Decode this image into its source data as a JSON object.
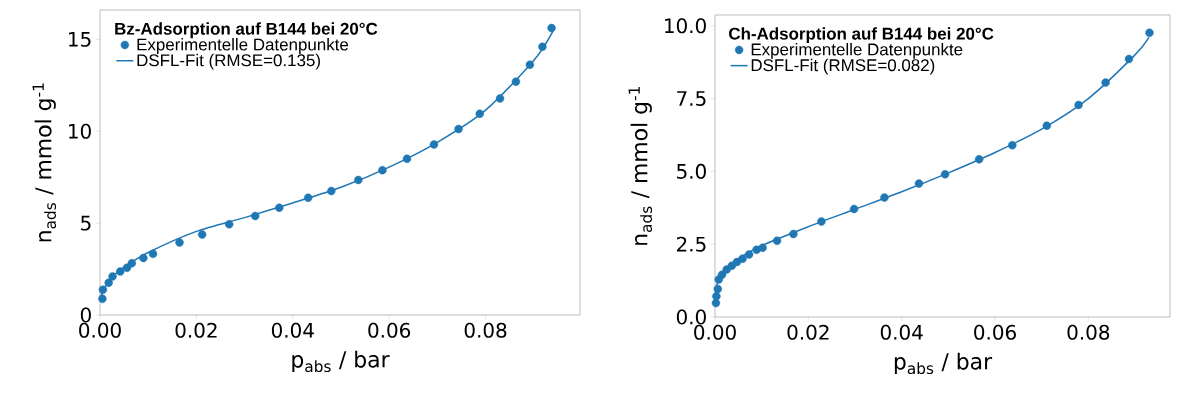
{
  "chart_data": [
    {
      "type": "scatter",
      "legend_title": "Bz-Adsorption auf B144 bei 20°C",
      "xlabel": "p$_{abs}$  / bar",
      "ylabel": "n$_{ads}$  / mmol g$^{-1}$",
      "legend": "top left",
      "xlim": [
        0,
        0.0996
      ],
      "ylim": [
        0,
        16.6
      ],
      "xticks": [
        {
          "value": 0,
          "label": "0.00"
        },
        {
          "value": 0.02,
          "label": "0.02"
        },
        {
          "value": 0.04,
          "label": "0.04"
        },
        {
          "value": 0.06,
          "label": "0.06"
        },
        {
          "value": 0.08,
          "label": "0.08"
        }
      ],
      "yticks": [
        0,
        5,
        10,
        15
      ],
      "series": [
        {
          "name": "Experimentelle Datenpunkte",
          "marker": "circle",
          "color": "#1f77b4",
          "x": [
            0.0005,
            0.0006,
            0.0018,
            0.0026,
            0.0042,
            0.0056,
            0.0066,
            0.009,
            0.011,
            0.0165,
            0.0212,
            0.0268,
            0.0322,
            0.0372,
            0.0432,
            0.048,
            0.0536,
            0.0586,
            0.0637,
            0.0693,
            0.0744,
            0.0788,
            0.083,
            0.0863,
            0.0892,
            0.0918,
            0.0937
          ],
          "values": [
            0.88,
            1.38,
            1.75,
            2.1,
            2.37,
            2.57,
            2.82,
            3.1,
            3.33,
            3.95,
            4.38,
            4.94,
            5.39,
            5.84,
            6.38,
            6.75,
            7.35,
            7.88,
            8.5,
            9.28,
            10.12,
            10.95,
            11.79,
            12.7,
            13.62,
            14.6,
            15.62
          ]
        },
        {
          "name": "DSFL-Fit (RMSE=0.135)",
          "type": "line",
          "marker": "none",
          "color": "#1f77b4",
          "x": [
            0,
            0.0005,
            0.002,
            0.005,
            0.01,
            0.02,
            0.03,
            0.04,
            0.05,
            0.06,
            0.07,
            0.08,
            0.09,
            0.094
          ],
          "values": [
            0.9,
            1.2,
            1.9,
            2.6,
            3.4,
            4.55,
            5.3,
            6.1,
            6.95,
            8.05,
            9.4,
            11.15,
            13.85,
            15.45
          ]
        }
      ]
    },
    {
      "type": "scatter",
      "legend_title": "Ch-Adsorption auf B144 bei 20°C",
      "xlabel": "p$_{abs}$  / bar",
      "ylabel": "n$_{ads}$  / mmol g$^{-1}$",
      "legend": "top left",
      "xlim": [
        0,
        0.0975
      ],
      "ylim": [
        0,
        10.37
      ],
      "xticks": [
        {
          "value": 0,
          "label": "0.00"
        },
        {
          "value": 0.02,
          "label": "0.02"
        },
        {
          "value": 0.04,
          "label": "0.04"
        },
        {
          "value": 0.06,
          "label": "0.06"
        },
        {
          "value": 0.08,
          "label": "0.08"
        }
      ],
      "yticks": [
        {
          "value": 0,
          "label": "0.0"
        },
        {
          "value": 2.5,
          "label": "2.5"
        },
        {
          "value": 5,
          "label": "5.0"
        },
        {
          "value": 7.5,
          "label": "7.5"
        },
        {
          "value": 10,
          "label": "10.0"
        }
      ],
      "series": [
        {
          "name": "Experimentelle Datenpunkte",
          "marker": "circle",
          "color": "#1f77b4",
          "x": [
            0.0002,
            0.0003,
            0.0006,
            0.0008,
            0.0015,
            0.0025,
            0.0036,
            0.0047,
            0.0059,
            0.0073,
            0.0089,
            0.0102,
            0.0133,
            0.0168,
            0.0228,
            0.0298,
            0.0363,
            0.0437,
            0.0493,
            0.0566,
            0.0637,
            0.0711,
            0.0779,
            0.0837,
            0.0887,
            0.0931
          ],
          "values": [
            0.48,
            0.71,
            0.96,
            1.29,
            1.45,
            1.63,
            1.76,
            1.89,
            2.0,
            2.15,
            2.31,
            2.38,
            2.62,
            2.85,
            3.28,
            3.71,
            4.1,
            4.58,
            4.9,
            5.42,
            5.9,
            6.57,
            7.28,
            8.05,
            8.86,
            9.76
          ]
        },
        {
          "name": "DSFL-Fit (RMSE=0.082)",
          "type": "line",
          "marker": "none",
          "color": "#1f77b4",
          "x": [
            0,
            0.0005,
            0.002,
            0.005,
            0.01,
            0.02,
            0.03,
            0.04,
            0.05,
            0.06,
            0.07,
            0.08,
            0.09,
            0.093
          ],
          "values": [
            0.4,
            1.15,
            1.6,
            2.0,
            2.45,
            3.1,
            3.7,
            4.3,
            4.95,
            5.65,
            6.45,
            7.5,
            9.0,
            9.6
          ]
        }
      ]
    }
  ]
}
